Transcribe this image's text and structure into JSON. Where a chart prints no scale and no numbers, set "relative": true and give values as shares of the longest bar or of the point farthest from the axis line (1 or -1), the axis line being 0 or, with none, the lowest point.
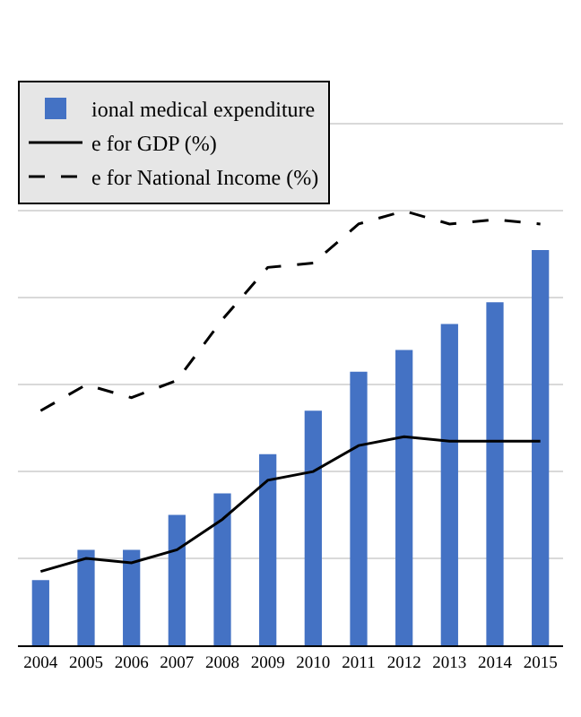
{
  "chart_data": {
    "type": "bar",
    "relative": true,
    "categories": [
      "2004",
      "2005",
      "2006",
      "2007",
      "2008",
      "2009",
      "2010",
      "2011",
      "2012",
      "2013",
      "2014",
      "2015"
    ],
    "series": [
      {
        "name": "ional medical expenditure",
        "color": "#4472c4",
        "values": [
          0.15,
          0.22,
          0.22,
          0.3,
          0.35,
          0.44,
          0.54,
          0.63,
          0.68,
          0.74,
          0.79,
          0.91
        ]
      },
      {
        "name": "e for GDP (%)",
        "type": "line",
        "color": "#000000",
        "line_style": "solid",
        "values": [
          0.17,
          0.2,
          0.19,
          0.22,
          0.29,
          0.38,
          0.4,
          0.46,
          0.48,
          0.47,
          0.47,
          0.47
        ]
      },
      {
        "name": "e for National Income (%)",
        "type": "line",
        "color": "#000000",
        "line_style": "dashed",
        "values": [
          0.54,
          0.6,
          0.57,
          0.61,
          0.75,
          0.87,
          0.88,
          0.97,
          1,
          0.97,
          0.98,
          0.97
        ]
      }
    ],
    "grid": "y",
    "legend": "top left",
    "marker": "none"
  }
}
